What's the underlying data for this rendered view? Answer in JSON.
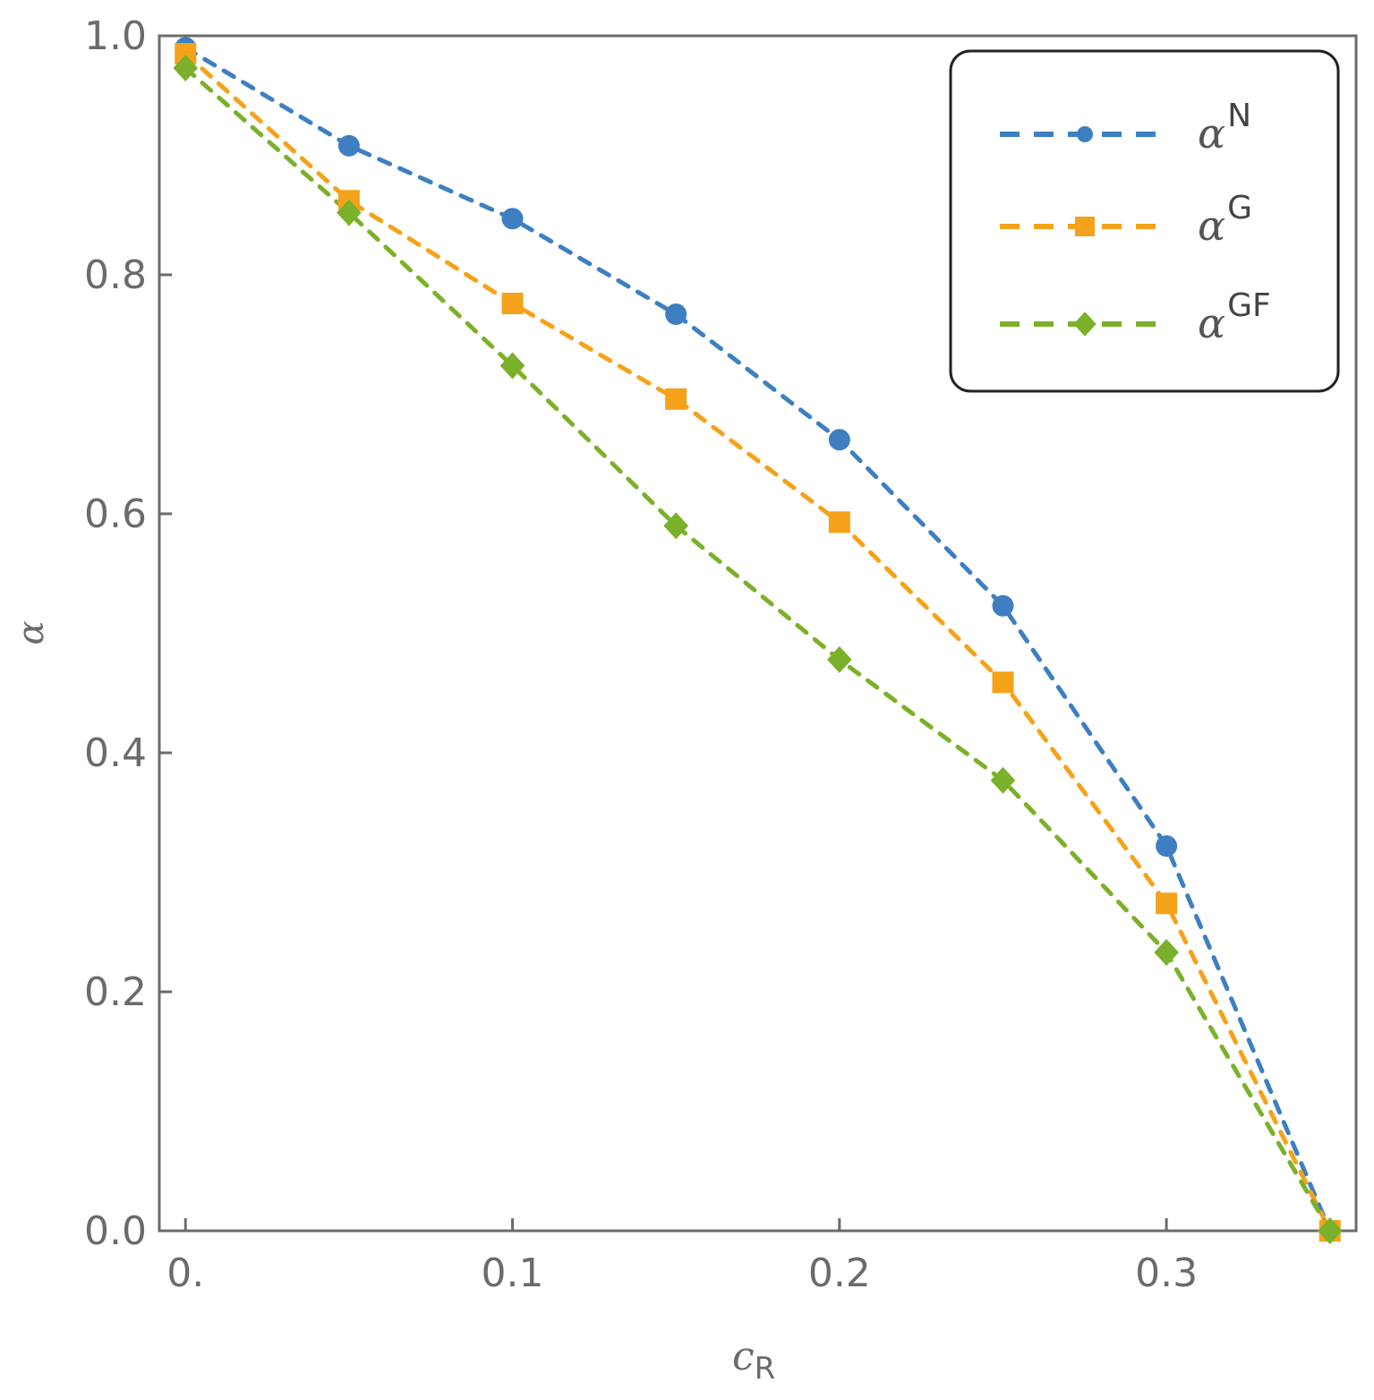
{
  "chart_data": {
    "type": "line",
    "title": "",
    "xlabel": "c",
    "xlabel_subscript": "R",
    "ylabel": "α",
    "xlim": [
      -0.008,
      0.358
    ],
    "ylim": [
      0.0,
      1.0
    ],
    "x_ticks": [
      0.0,
      0.1,
      0.2,
      0.3
    ],
    "x_tick_labels": [
      "0.",
      "0.1",
      "0.2",
      "0.3"
    ],
    "y_ticks": [
      0.0,
      0.2,
      0.4,
      0.6,
      0.8,
      1.0
    ],
    "y_tick_labels": [
      "0.0",
      "0.2",
      "0.4",
      "0.6",
      "0.8",
      "1.0"
    ],
    "grid": false,
    "legend_position": "top-right",
    "x": [
      0.0,
      0.05,
      0.1,
      0.15,
      0.2,
      0.25,
      0.3,
      0.35
    ],
    "series": [
      {
        "name": "α",
        "name_superscript": "N",
        "color": "#3e7fc1",
        "marker": "circle",
        "line": "dashed",
        "values": [
          0.99,
          0.908,
          0.847,
          0.767,
          0.662,
          0.523,
          0.322,
          0.0
        ]
      },
      {
        "name": "α",
        "name_superscript": "G",
        "color": "#f5a21b",
        "marker": "square",
        "line": "dashed",
        "values": [
          0.985,
          0.862,
          0.776,
          0.696,
          0.593,
          0.459,
          0.274,
          0.0
        ]
      },
      {
        "name": "α",
        "name_superscript": "GF",
        "color": "#7bb12a",
        "marker": "diamond",
        "line": "dashed",
        "values": [
          0.973,
          0.852,
          0.724,
          0.59,
          0.478,
          0.377,
          0.233,
          0.0
        ]
      }
    ]
  }
}
